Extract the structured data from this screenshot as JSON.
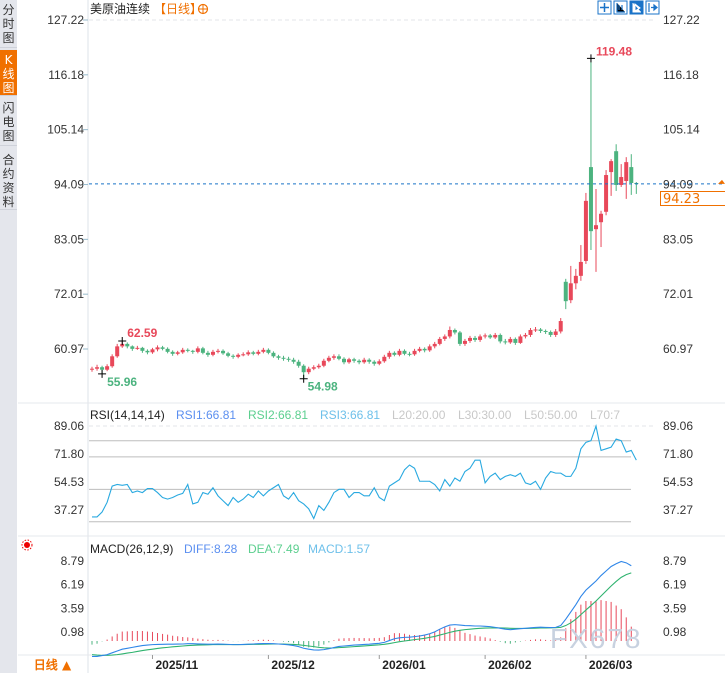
{
  "sidebar": {
    "tabs": [
      {
        "label": "分时图",
        "active": false
      },
      {
        "label": "K线图",
        "active": true
      },
      {
        "label": "闪电图",
        "active": false
      },
      {
        "label": "合约资料",
        "active": false
      }
    ]
  },
  "header": {
    "title": "美原油连续",
    "period": "【日线】",
    "icon": "add-circle-icon"
  },
  "toolbar": {
    "icons": [
      "crosshair-icon",
      "zoom-fit-icon",
      "draw-tool-icon",
      "scroll-right-icon"
    ]
  },
  "bottom_tab": {
    "label": "日线 ▲"
  },
  "colors": {
    "up": "#e8485a",
    "down": "#4cb37f",
    "accent": "#f07000",
    "rsi": "#29a9e0",
    "diff": "#2f86e8",
    "dea": "#2fb36f"
  },
  "watermark": "FX678",
  "chart_data": [
    {
      "type": "candlestick",
      "price_axis": {
        "ticks": [
          "127.22",
          "116.18",
          "105.14",
          "94.09",
          "83.05",
          "72.01",
          "60.97"
        ],
        "range": [
          54.5,
          127.22
        ]
      },
      "last_price": "94.23",
      "annotations": {
        "high": "119.48",
        "low_left": "55.96",
        "high_left": "62.59",
        "low_mid": "54.98"
      },
      "dates": [
        "2025/11",
        "2025/12",
        "2026/01",
        "2026/02",
        "2026/03"
      ],
      "date_index": [
        12,
        35,
        57,
        78,
        98
      ],
      "close": [
        57.0,
        57.3,
        56.8,
        57.5,
        59.5,
        61.5,
        62.0,
        61.5,
        61.0,
        61.2,
        60.6,
        60.3,
        60.9,
        61.3,
        61.0,
        60.4,
        60.0,
        60.3,
        60.8,
        60.6,
        60.4,
        61.1,
        60.2,
        59.8,
        60.4,
        60.6,
        60.1,
        59.6,
        59.4,
        59.8,
        59.9,
        60.3,
        60.0,
        60.4,
        60.8,
        60.2,
        59.5,
        59.2,
        59.0,
        58.8,
        58.4,
        57.6,
        56.3,
        57.0,
        57.3,
        57.6,
        58.6,
        59.2,
        59.5,
        59.0,
        58.3,
        58.9,
        58.6,
        58.3,
        58.8,
        58.4,
        58.0,
        58.5,
        59.4,
        60.2,
        59.8,
        60.6,
        60.0,
        59.9,
        60.6,
        61.0,
        60.7,
        61.5,
        62.0,
        63.0,
        63.5,
        64.8,
        64.3,
        62.0,
        62.6,
        63.2,
        62.8,
        63.5,
        63.7,
        63.3,
        63.8,
        62.5,
        62.3,
        63.0,
        62.2,
        63.5,
        63.8,
        64.8,
        64.9,
        64.6,
        64.4,
        63.8,
        64.5,
        66.6,
        70.6,
        74.2,
        75.7,
        78.5,
        90.8,
        84.7,
        85.9,
        88.2,
        96.0,
        98.8,
        94.0,
        95.6,
        98.6,
        94.4,
        94.23
      ],
      "open": [
        56.8,
        57.0,
        57.3,
        56.8,
        57.5,
        59.5,
        61.5,
        62.0,
        61.5,
        61.0,
        61.2,
        60.6,
        60.3,
        60.9,
        61.3,
        61.0,
        60.4,
        60.0,
        60.3,
        60.8,
        60.6,
        60.4,
        61.1,
        60.2,
        59.8,
        60.4,
        60.6,
        60.1,
        59.6,
        59.4,
        59.8,
        59.9,
        60.3,
        60.0,
        60.4,
        60.8,
        60.2,
        59.5,
        59.2,
        59.0,
        58.8,
        58.4,
        57.6,
        56.3,
        57.0,
        57.3,
        57.6,
        58.6,
        59.2,
        59.5,
        59.0,
        58.3,
        58.9,
        58.6,
        58.3,
        58.8,
        58.4,
        58.0,
        58.5,
        59.4,
        60.2,
        59.8,
        60.6,
        60.0,
        59.9,
        60.6,
        61.0,
        60.7,
        61.5,
        62.0,
        63.0,
        63.5,
        64.8,
        64.3,
        62.0,
        62.6,
        63.2,
        62.8,
        63.5,
        63.7,
        63.3,
        63.8,
        62.5,
        62.3,
        63.0,
        62.2,
        63.5,
        63.8,
        64.8,
        64.9,
        64.6,
        64.4,
        63.8,
        64.5,
        74.5,
        70.8,
        74.2,
        75.7,
        78.7,
        97.6,
        85.1,
        86.5,
        88.6,
        96.6,
        100.8,
        94.0,
        94.8,
        97.6,
        94.4
      ],
      "high": [
        57.4,
        57.8,
        57.6,
        57.9,
        59.9,
        62.0,
        62.59,
        62.3,
        61.7,
        61.6,
        61.4,
        60.9,
        61.2,
        61.7,
        61.6,
        61.3,
        60.7,
        60.6,
        61.2,
        61.1,
        60.8,
        61.5,
        61.4,
        60.6,
        60.8,
        61.0,
        60.9,
        60.4,
        59.9,
        60.1,
        60.3,
        60.7,
        60.6,
        60.8,
        61.2,
        61.1,
        60.5,
        59.8,
        59.6,
        59.4,
        59.2,
        58.8,
        57.9,
        57.4,
        57.7,
        58.0,
        59.0,
        59.6,
        59.9,
        59.9,
        59.3,
        59.2,
        59.2,
        58.9,
        59.2,
        59.1,
        58.7,
        58.9,
        59.8,
        60.6,
        60.5,
        61.0,
        60.9,
        60.4,
        61.0,
        61.4,
        61.3,
        61.9,
        62.4,
        63.4,
        63.9,
        65.5,
        65.1,
        64.6,
        63.0,
        63.6,
        63.6,
        63.9,
        64.1,
        64.0,
        64.2,
        64.1,
        63.0,
        63.4,
        63.3,
        63.9,
        64.2,
        65.2,
        65.4,
        65.2,
        64.9,
        64.7,
        65.0,
        67.2,
        75.1,
        77.7,
        77.1,
        81.9,
        92.4,
        119.48,
        93.2,
        88.8,
        97.0,
        99.2,
        102.2,
        98.2,
        99.6,
        100.2,
        94.6
      ],
      "low": [
        56.4,
        56.6,
        55.96,
        56.5,
        57.2,
        59.2,
        61.2,
        61.1,
        60.6,
        60.8,
        60.2,
        59.9,
        60.0,
        60.5,
        60.7,
        60.1,
        59.6,
        59.7,
        60.0,
        60.3,
        60.0,
        60.1,
        59.9,
        59.4,
        59.5,
        60.1,
        59.8,
        59.3,
        59.0,
        59.1,
        59.5,
        59.6,
        59.7,
        59.7,
        60.1,
        59.9,
        59.2,
        58.8,
        58.6,
        58.4,
        58.0,
        57.2,
        54.98,
        55.9,
        56.7,
        57.0,
        57.3,
        58.3,
        58.8,
        58.7,
        57.9,
        58.0,
        58.2,
        57.9,
        58.0,
        58.0,
        57.6,
        57.7,
        58.2,
        59.0,
        59.5,
        59.5,
        59.7,
        59.5,
        59.6,
        60.3,
        60.3,
        60.4,
        61.1,
        61.7,
        62.6,
        63.1,
        63.9,
        61.6,
        61.6,
        62.2,
        62.4,
        62.4,
        63.1,
        63.0,
        63.0,
        62.1,
        61.9,
        62.0,
        61.8,
        62.0,
        63.1,
        63.4,
        64.4,
        64.2,
        64.0,
        63.4,
        63.4,
        64.1,
        69.0,
        70.2,
        73.0,
        74.7,
        78.1,
        80.9,
        76.5,
        81.5,
        87.9,
        91.8,
        92.8,
        93.6,
        91.2,
        92.0,
        92.2
      ]
    },
    {
      "type": "line",
      "indicator": "RSI",
      "legend": {
        "title": "RSI(14,14,14)",
        "rsi1": "RSI1:66.81",
        "rsi2": "RSI2:66.81",
        "rsi3": "RSI3:66.81",
        "l20": "L20:20.00",
        "l30": "L30:30.00",
        "l50": "L50:50.00",
        "l70": "L70:7"
      },
      "axis_ticks": [
        "89.06",
        "71.80",
        "54.53",
        "37.27"
      ],
      "range": [
        28,
        93
      ],
      "reference_lines": [
        80,
        70,
        50,
        30
      ],
      "values": [
        33,
        33,
        36,
        42,
        52,
        53,
        52.5,
        53,
        48,
        49,
        48,
        50.5,
        50.5,
        48,
        45,
        44,
        45,
        46.5,
        47.5,
        53,
        41,
        42,
        48,
        47,
        51,
        46,
        43,
        40,
        45,
        42,
        44,
        47,
        45,
        49,
        46,
        49,
        51,
        53,
        46,
        44,
        48,
        43,
        41,
        38,
        32,
        40,
        37,
        42,
        48,
        50,
        50,
        45,
        48,
        48,
        46,
        46,
        51,
        45,
        43,
        52,
        54,
        56,
        62,
        65,
        63,
        55,
        55,
        55,
        53,
        49,
        56,
        52,
        57,
        55,
        61,
        63,
        68,
        68,
        54,
        58,
        60,
        56,
        58,
        59,
        58,
        60,
        54,
        53,
        55,
        50,
        57,
        61,
        60,
        60,
        58,
        58,
        63,
        75,
        79,
        80,
        89,
        74,
        75,
        76,
        81,
        80,
        73,
        74,
        68
      ]
    },
    {
      "type": "line",
      "indicator": "MACD",
      "legend": {
        "title": "MACD(26,12,9)",
        "diff": "DIFF:8.28",
        "dea": "DEA:7.49",
        "macd": "MACD:1.57"
      },
      "axis_ticks": [
        "8.79",
        "6.19",
        "3.59",
        "0.98"
      ],
      "range": [
        -2.2,
        9.3
      ],
      "diff": [
        -1.7,
        -1.7,
        -1.6,
        -1.5,
        -1.3,
        -1.1,
        -0.9,
        -0.8,
        -0.7,
        -0.6,
        -0.5,
        -0.45,
        -0.4,
        -0.38,
        -0.36,
        -0.35,
        -0.35,
        -0.34,
        -0.33,
        -0.3,
        -0.3,
        -0.32,
        -0.33,
        -0.35,
        -0.35,
        -0.34,
        -0.35,
        -0.37,
        -0.4,
        -0.4,
        -0.38,
        -0.35,
        -0.33,
        -0.3,
        -0.28,
        -0.28,
        -0.3,
        -0.33,
        -0.37,
        -0.42,
        -0.5,
        -0.62,
        -0.8,
        -0.9,
        -0.98,
        -1.0,
        -0.95,
        -0.85,
        -0.72,
        -0.6,
        -0.55,
        -0.5,
        -0.45,
        -0.42,
        -0.38,
        -0.35,
        -0.3,
        -0.25,
        -0.15,
        0.05,
        0.25,
        0.35,
        0.4,
        0.42,
        0.48,
        0.55,
        0.65,
        0.8,
        1.0,
        1.3,
        1.55,
        1.75,
        1.8,
        1.75,
        1.7,
        1.68,
        1.65,
        1.65,
        1.62,
        1.58,
        1.5,
        1.4,
        1.3,
        1.25,
        1.3,
        1.35,
        1.4,
        1.45,
        1.5,
        1.52,
        1.5,
        1.48,
        1.5,
        1.7,
        2.4,
        3.2,
        4.0,
        4.9,
        5.6,
        6.1,
        6.6,
        7.2,
        7.7,
        8.2,
        8.5,
        8.75,
        8.6,
        8.28
      ],
      "dea": [
        -1.5,
        -1.55,
        -1.58,
        -1.58,
        -1.55,
        -1.5,
        -1.42,
        -1.33,
        -1.25,
        -1.15,
        -1.05,
        -0.97,
        -0.9,
        -0.82,
        -0.75,
        -0.7,
        -0.64,
        -0.6,
        -0.55,
        -0.5,
        -0.47,
        -0.45,
        -0.43,
        -0.42,
        -0.4,
        -0.4,
        -0.39,
        -0.39,
        -0.39,
        -0.39,
        -0.39,
        -0.38,
        -0.37,
        -0.36,
        -0.35,
        -0.34,
        -0.33,
        -0.33,
        -0.34,
        -0.36,
        -0.38,
        -0.42,
        -0.48,
        -0.55,
        -0.62,
        -0.7,
        -0.75,
        -0.77,
        -0.76,
        -0.73,
        -0.7,
        -0.66,
        -0.62,
        -0.58,
        -0.54,
        -0.5,
        -0.46,
        -0.42,
        -0.36,
        -0.28,
        -0.18,
        -0.08,
        0.0,
        0.08,
        0.15,
        0.22,
        0.3,
        0.4,
        0.5,
        0.65,
        0.8,
        0.95,
        1.08,
        1.18,
        1.25,
        1.3,
        1.35,
        1.4,
        1.42,
        1.44,
        1.45,
        1.44,
        1.42,
        1.4,
        1.38,
        1.38,
        1.38,
        1.39,
        1.41,
        1.43,
        1.44,
        1.45,
        1.46,
        1.5,
        1.7,
        2.0,
        2.4,
        2.9,
        3.4,
        3.9,
        4.4,
        4.95,
        5.5,
        6.05,
        6.55,
        7.0,
        7.3,
        7.49
      ]
    }
  ]
}
